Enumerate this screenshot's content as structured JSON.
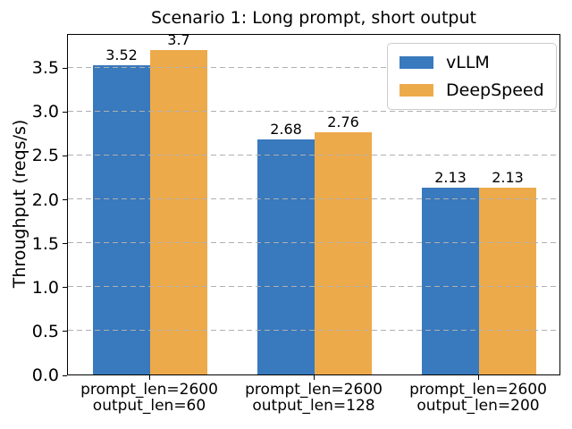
{
  "chart_data": {
    "type": "bar",
    "title": "Scenario 1: Long prompt, short output",
    "xlabel": "",
    "ylabel": "Throughput (reqs/s)",
    "categories": [
      "prompt_len=2600\noutput_len=60",
      "prompt_len=2600\noutput_len=128",
      "prompt_len=2600\noutput_len=200"
    ],
    "series": [
      {
        "name": "vLLM",
        "color": "#3979bd",
        "values": [
          3.52,
          2.68,
          2.13
        ]
      },
      {
        "name": "DeepSpeed",
        "color": "#edaa4a",
        "values": [
          3.7,
          2.76,
          2.13
        ]
      }
    ],
    "bar_value_labels": [
      [
        "3.52",
        "2.68",
        "2.13"
      ],
      [
        "3.7",
        "2.76",
        "2.13"
      ]
    ],
    "yticks": [
      0.0,
      0.5,
      1.0,
      1.5,
      2.0,
      2.5,
      3.0,
      3.5
    ],
    "ylim": [
      0,
      3.89
    ],
    "bar_width_fraction": 0.35,
    "grid": {
      "axis": "y",
      "style": "dashed",
      "color": "#b0b0b0",
      "drawn_over_bars": true
    },
    "legend": {
      "position": "upper-right",
      "entries": [
        "vLLM",
        "DeepSpeed"
      ]
    }
  }
}
